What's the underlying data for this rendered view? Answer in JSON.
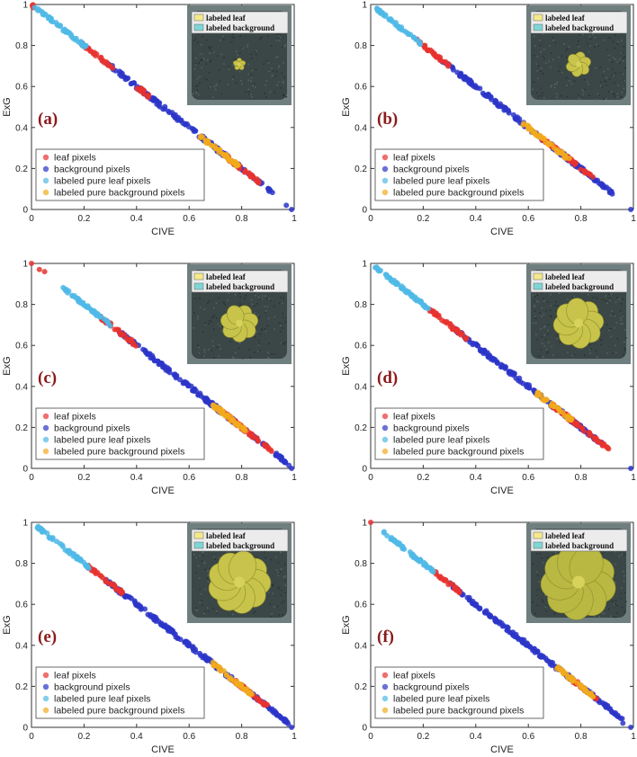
{
  "colors": {
    "leaf": "#e8322f",
    "background": "#2b35c8",
    "labeled_leaf": "#4fb8e6",
    "labeled_background": "#f2aa1c",
    "panel_letter": "#8b1a1a",
    "inset_leaf_swatch": "#f5e98a",
    "inset_background_swatch": "#7fd6d6"
  },
  "inset_legend": {
    "labeled_leaf": "labeled leaf",
    "labeled_background": "labeled background"
  },
  "chart_data": [
    {
      "panel": "(a)",
      "type": "scatter",
      "xlabel": "CIVE",
      "ylabel": "ExG",
      "xlim": [
        0,
        1
      ],
      "ylim": [
        0,
        1
      ],
      "xticks": [
        "0",
        "0.2",
        "0.4",
        "0.6",
        "0.8",
        "1"
      ],
      "yticks": [
        "0",
        "0.2",
        "0.4",
        "0.6",
        "0.8",
        "1"
      ],
      "legend_position": "lower-left",
      "series": [
        {
          "name": "leaf pixels",
          "ranges": [
            [
              0.19,
              0.31
            ],
            [
              0.4,
              0.45
            ],
            [
              0.73,
              0.87
            ],
            [
              0.0,
              0.01
            ]
          ]
        },
        {
          "name": "background pixels",
          "ranges": [
            [
              0.28,
              0.92
            ]
          ],
          "extra_points": [
            [
              0.97,
              0.02
            ],
            [
              0.99,
              0.0
            ]
          ]
        },
        {
          "name": "labeled pure leaf pixels",
          "ranges": [
            [
              0.01,
              0.21
            ]
          ]
        },
        {
          "name": "labeled pure background pixels",
          "ranges": [
            [
              0.63,
              0.79
            ]
          ]
        }
      ]
    },
    {
      "panel": "(b)",
      "type": "scatter",
      "xlabel": "CIVE",
      "ylabel": "ExG",
      "xlim": [
        0,
        1
      ],
      "ylim": [
        0,
        1
      ],
      "xticks": [
        "0",
        "0.2",
        "0.4",
        "0.6",
        "0.8",
        "1"
      ],
      "yticks": [
        "0",
        "0.2",
        "0.4",
        "0.6",
        "0.8",
        "1"
      ],
      "legend_position": "lower-left",
      "series": [
        {
          "name": "leaf pixels",
          "ranges": [
            [
              0.17,
              0.3
            ],
            [
              0.65,
              0.85
            ]
          ]
        },
        {
          "name": "background pixels",
          "ranges": [
            [
              0.27,
              0.92
            ]
          ],
          "extra_points": [
            [
              0.99,
              0.0
            ]
          ]
        },
        {
          "name": "labeled pure leaf pixels",
          "ranges": [
            [
              0.02,
              0.19
            ]
          ]
        },
        {
          "name": "labeled pure background pixels",
          "ranges": [
            [
              0.58,
              0.76
            ]
          ]
        }
      ]
    },
    {
      "panel": "(c)",
      "type": "scatter",
      "xlabel": "CIVE",
      "ylabel": "ExG",
      "xlim": [
        0,
        1
      ],
      "ylim": [
        0,
        1
      ],
      "xticks": [
        "0",
        "0.2",
        "0.4",
        "0.6",
        "0.8",
        "1"
      ],
      "yticks": [
        "0",
        "0.2",
        "0.4",
        "0.6",
        "0.8",
        "1"
      ],
      "legend_position": "lower-left",
      "series": [
        {
          "name": "leaf pixels",
          "ranges": [
            [
              0.26,
              0.4
            ],
            [
              0.72,
              0.92
            ]
          ],
          "extra_points": [
            [
              0.0,
              1.0
            ],
            [
              0.03,
              0.97
            ],
            [
              0.05,
              0.96
            ]
          ]
        },
        {
          "name": "background pixels",
          "ranges": [
            [
              0.33,
              0.98
            ]
          ],
          "extra_points": [
            [
              0.99,
              0.0
            ]
          ]
        },
        {
          "name": "labeled pure leaf pixels",
          "ranges": [
            [
              0.12,
              0.3
            ]
          ]
        },
        {
          "name": "labeled pure background pixels",
          "ranges": [
            [
              0.68,
              0.82
            ]
          ]
        }
      ]
    },
    {
      "panel": "(d)",
      "type": "scatter",
      "xlabel": "CIVE",
      "ylabel": "ExG",
      "xlim": [
        0,
        1
      ],
      "ylim": [
        0,
        1
      ],
      "xticks": [
        "0",
        "0.2",
        "0.4",
        "0.6",
        "0.8",
        "1"
      ],
      "yticks": [
        "0",
        "0.2",
        "0.4",
        "0.6",
        "0.8",
        "1"
      ],
      "legend_position": "lower-left",
      "series": [
        {
          "name": "leaf pixels",
          "ranges": [
            [
              0.22,
              0.37
            ],
            [
              0.69,
              0.91
            ]
          ]
        },
        {
          "name": "background pixels",
          "ranges": [
            [
              0.32,
              0.88
            ]
          ],
          "extra_points": [
            [
              0.99,
              0.0
            ]
          ]
        },
        {
          "name": "labeled pure leaf pixels",
          "ranges": [
            [
              0.01,
              0.22
            ]
          ]
        },
        {
          "name": "labeled pure background pixels",
          "ranges": [
            [
              0.63,
              0.77
            ]
          ]
        }
      ]
    },
    {
      "panel": "(e)",
      "type": "scatter",
      "xlabel": "CIVE",
      "ylabel": "ExG",
      "xlim": [
        0,
        1
      ],
      "ylim": [
        0,
        1
      ],
      "xticks": [
        "0",
        "0.2",
        "0.4",
        "0.6",
        "0.8",
        "1"
      ],
      "yticks": [
        "0",
        "0.2",
        "0.4",
        "0.6",
        "0.8",
        "1"
      ],
      "legend_position": "lower-left",
      "series": [
        {
          "name": "leaf pixels",
          "ranges": [
            [
              0.2,
              0.35
            ],
            [
              0.76,
              0.9
            ]
          ]
        },
        {
          "name": "background pixels",
          "ranges": [
            [
              0.28,
              0.98
            ]
          ],
          "extra_points": [
            [
              0.99,
              0.0
            ]
          ]
        },
        {
          "name": "labeled pure leaf pixels",
          "ranges": [
            [
              0.02,
              0.22
            ]
          ]
        },
        {
          "name": "labeled pure background pixels",
          "ranges": [
            [
              0.69,
              0.84
            ]
          ]
        }
      ]
    },
    {
      "panel": "(f)",
      "type": "scatter",
      "xlabel": "CIVE",
      "ylabel": "ExG",
      "xlim": [
        0,
        1
      ],
      "ylim": [
        0,
        1
      ],
      "xticks": [
        "0",
        "0.2",
        "0.4",
        "0.6",
        "0.8",
        "1"
      ],
      "yticks": [
        "0",
        "0.2",
        "0.4",
        "0.6",
        "0.8",
        "1"
      ],
      "legend_position": "lower-left",
      "series": [
        {
          "name": "leaf pixels",
          "ranges": [
            [
              0.24,
              0.34
            ],
            [
              0.77,
              0.86
            ]
          ],
          "extra_points": [
            [
              0.0,
              1.0
            ]
          ]
        },
        {
          "name": "background pixels",
          "ranges": [
            [
              0.3,
              0.96
            ]
          ],
          "extra_points": [
            [
              0.96,
              0.02
            ],
            [
              0.99,
              0.0
            ]
          ]
        },
        {
          "name": "labeled pure leaf pixels",
          "ranges": [
            [
              0.05,
              0.25
            ]
          ]
        },
        {
          "name": "labeled pure background pixels",
          "ranges": [
            [
              0.7,
              0.85
            ]
          ]
        }
      ]
    }
  ]
}
